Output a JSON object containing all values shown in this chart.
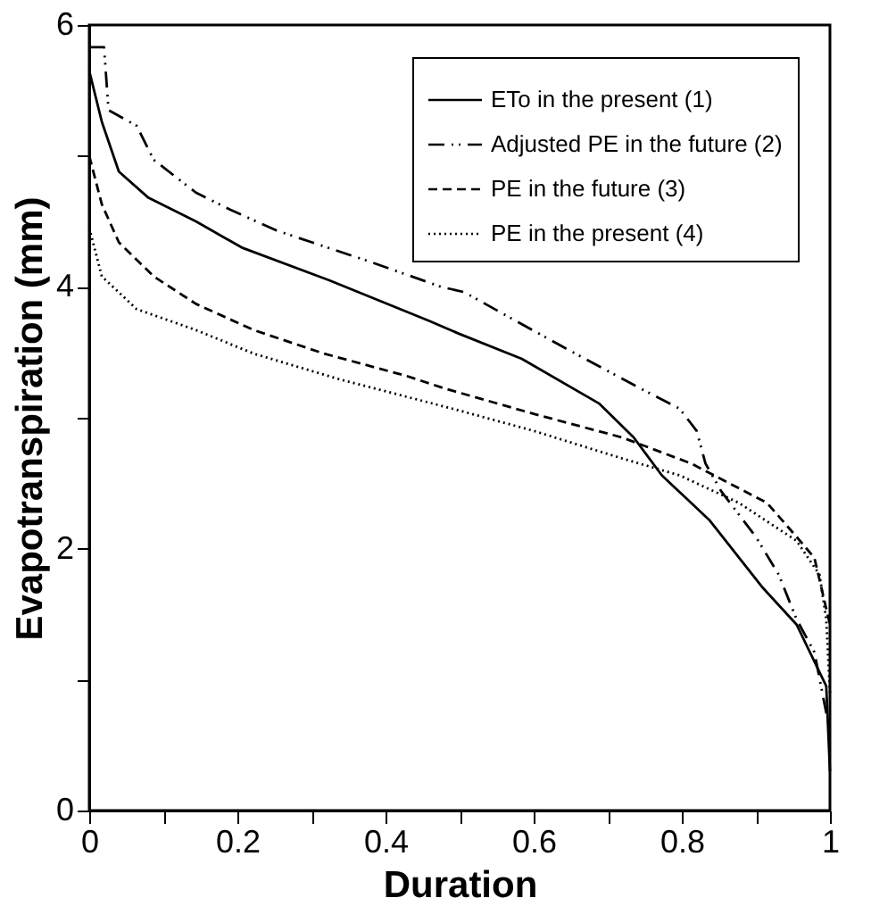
{
  "chart_data": {
    "type": "line",
    "xlabel": "Duration",
    "ylabel": "Evapotranspiration (mm)",
    "xlim": [
      0,
      1
    ],
    "ylim": [
      0,
      6
    ],
    "xticks": [
      0,
      {
        "value": 0.1,
        "label": null
      },
      0.2,
      {
        "value": 0.3,
        "label": null
      },
      0.4,
      {
        "value": 0.5,
        "label": null
      },
      0.6,
      {
        "value": 0.7,
        "label": null
      },
      0.8,
      {
        "value": 0.9,
        "label": null
      },
      1
    ],
    "yticks": [
      0,
      {
        "value": 1,
        "label": null
      },
      2,
      {
        "value": 3,
        "label": null
      },
      4,
      {
        "value": 5,
        "label": null
      },
      6
    ],
    "grid": false,
    "legend": "top right",
    "marker": "none",
    "series": [
      {
        "name": "ETo in the present (1)",
        "color": "#000000",
        "line_style": "solid",
        "x": [
          0,
          0.017,
          0.04,
          0.08,
          0.144,
          0.206,
          0.324,
          0.459,
          0.5,
          0.584,
          0.688,
          0.735,
          0.773,
          0.837,
          0.908,
          0.955,
          0.995,
          1
        ],
        "values": [
          5.65,
          5.26,
          4.88,
          4.68,
          4.5,
          4.3,
          4.05,
          3.74,
          3.64,
          3.45,
          3.11,
          2.85,
          2.56,
          2.22,
          1.71,
          1.42,
          0.95,
          0.3
        ]
      },
      {
        "name": "Adjusted PE in the future (2)",
        "color": "#000000",
        "line_style": "dashdot",
        "x": [
          0,
          0.02,
          0.026,
          0.064,
          0.087,
          0.144,
          0.19,
          0.253,
          0.38,
          0.475,
          0.506,
          0.56,
          0.64,
          0.742,
          0.797,
          0.82,
          0.832,
          0.853,
          0.9,
          0.931,
          0.955,
          0.979,
          1
        ],
        "values": [
          5.83,
          5.83,
          5.35,
          5.23,
          4.97,
          4.72,
          4.59,
          4.43,
          4.19,
          4.0,
          3.96,
          3.79,
          3.54,
          3.23,
          3.07,
          2.9,
          2.65,
          2.44,
          2.09,
          1.8,
          1.46,
          1.21,
          0.6
        ]
      },
      {
        "name": "PE in the future (3)",
        "color": "#000000",
        "line_style": "dashed",
        "x": [
          0,
          0.017,
          0.04,
          0.087,
          0.144,
          0.222,
          0.317,
          0.428,
          0.482,
          0.6,
          0.719,
          0.813,
          0.915,
          0.955,
          0.979,
          1
        ],
        "values": [
          5.0,
          4.63,
          4.34,
          4.08,
          3.87,
          3.67,
          3.49,
          3.32,
          3.22,
          3.03,
          2.85,
          2.65,
          2.35,
          2.09,
          1.93,
          1.42
        ]
      },
      {
        "name": "PE in the present (4)",
        "color": "#000000",
        "line_style": "dotted",
        "x": [
          0,
          0.017,
          0.064,
          0.144,
          0.222,
          0.34,
          0.49,
          0.6,
          0.719,
          0.797,
          0.877,
          0.955,
          0.986,
          0.995,
          1
        ],
        "values": [
          4.45,
          4.08,
          3.83,
          3.67,
          3.49,
          3.29,
          3.07,
          2.9,
          2.69,
          2.56,
          2.35,
          2.06,
          1.8,
          1.46,
          0.9
        ]
      }
    ]
  }
}
